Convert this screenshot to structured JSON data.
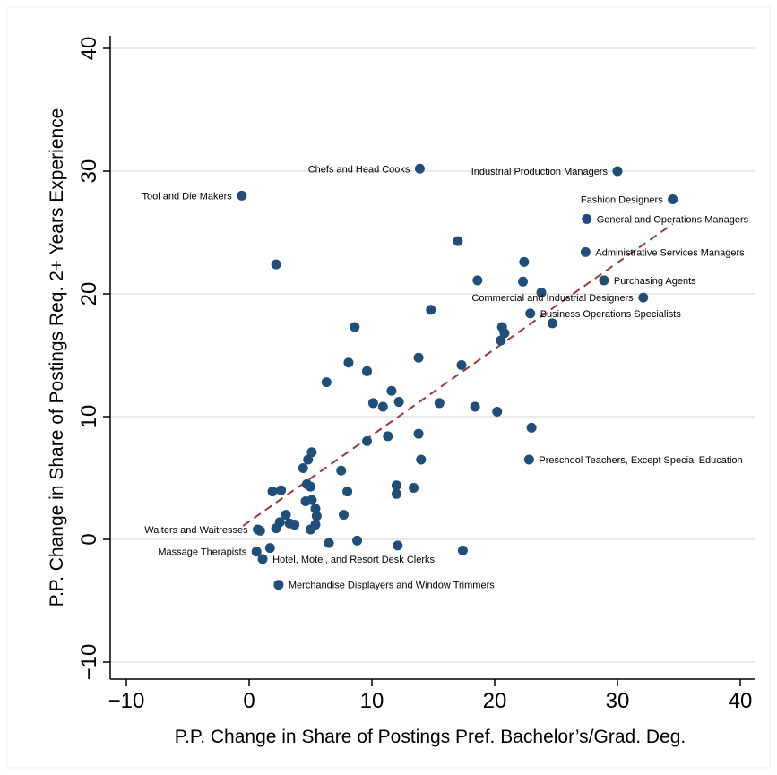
{
  "chart_data": {
    "type": "scatter",
    "xlabel": "P.P. Change in Share of Postings Pref. Bachelor’s/Grad. Deg.",
    "ylabel": "P.P. Change in Share of Postings Req. 2+ Years Experience",
    "xlim": [
      -12,
      41
    ],
    "ylim": [
      -12,
      41
    ],
    "xticks": [
      -10,
      0,
      10,
      20,
      30,
      40
    ],
    "yticks": [
      -10,
      0,
      10,
      20,
      30,
      40
    ],
    "xtick_labels": [
      "−10",
      "0",
      "10",
      "20",
      "30",
      "40"
    ],
    "ytick_labels": [
      "−10",
      "0",
      "10",
      "20",
      "30",
      "40"
    ],
    "grid": "horizontal",
    "colors": {
      "point": "#1f4e79",
      "fit_line": "#9b3a3a",
      "grid": "#dcdcdc"
    },
    "fit_line": {
      "x": [
        -0.5,
        34.5
      ],
      "y": [
        1.1,
        25.7
      ]
    },
    "labeled_points": [
      {
        "label": "Chefs and Head Cooks",
        "x": 13.9,
        "y": 30.2,
        "side": "left"
      },
      {
        "label": "Industrial Production Managers",
        "x": 30.0,
        "y": 30.0,
        "side": "left"
      },
      {
        "label": "Tool and Die Makers",
        "x": -0.6,
        "y": 28.0,
        "side": "left"
      },
      {
        "label": "Fashion Designers",
        "x": 34.5,
        "y": 27.7,
        "side": "left"
      },
      {
        "label": "General and Operations Managers",
        "x": 27.5,
        "y": 26.1,
        "side": "right"
      },
      {
        "label": "Administrative Services Managers",
        "x": 27.4,
        "y": 23.4,
        "side": "right"
      },
      {
        "label": "Purchasing Agents",
        "x": 28.9,
        "y": 21.1,
        "side": "right"
      },
      {
        "label": "Commercial and Industrial Designers",
        "x": 32.1,
        "y": 19.7,
        "side": "left"
      },
      {
        "label": "Business Operations Specialists",
        "x": 22.9,
        "y": 18.4,
        "side": "right"
      },
      {
        "label": "Preschool Teachers, Except Special Education",
        "x": 22.8,
        "y": 6.5,
        "side": "right"
      },
      {
        "label": "Waiters and Waitresses",
        "x": 0.7,
        "y": 0.8,
        "side": "left"
      },
      {
        "label": "Massage Therapists",
        "x": 0.6,
        "y": -1.0,
        "side": "left"
      },
      {
        "label": "Hotel, Motel, and Resort Desk Clerks",
        "x": 1.1,
        "y": -1.6,
        "side": "right"
      },
      {
        "label": "Merchandise Displayers and Window Trimmers",
        "x": 2.4,
        "y": -3.7,
        "side": "right"
      }
    ],
    "points": [
      {
        "x": 2.2,
        "y": 22.4
      },
      {
        "x": 17.0,
        "y": 24.3
      },
      {
        "x": 22.4,
        "y": 22.6
      },
      {
        "x": 18.6,
        "y": 21.1
      },
      {
        "x": 22.3,
        "y": 21.0
      },
      {
        "x": 23.8,
        "y": 20.1
      },
      {
        "x": 14.8,
        "y": 18.7
      },
      {
        "x": 8.6,
        "y": 17.3
      },
      {
        "x": 20.6,
        "y": 17.3
      },
      {
        "x": 20.8,
        "y": 16.8
      },
      {
        "x": 24.7,
        "y": 17.6
      },
      {
        "x": 20.5,
        "y": 16.2
      },
      {
        "x": 8.1,
        "y": 14.4
      },
      {
        "x": 13.8,
        "y": 14.8
      },
      {
        "x": 17.3,
        "y": 14.2
      },
      {
        "x": 9.6,
        "y": 13.7
      },
      {
        "x": 6.3,
        "y": 12.8
      },
      {
        "x": 11.6,
        "y": 12.1
      },
      {
        "x": 10.1,
        "y": 11.1
      },
      {
        "x": 10.9,
        "y": 10.8
      },
      {
        "x": 12.2,
        "y": 11.2
      },
      {
        "x": 15.5,
        "y": 11.1
      },
      {
        "x": 18.4,
        "y": 10.8
      },
      {
        "x": 20.2,
        "y": 10.4
      },
      {
        "x": 23.0,
        "y": 9.1
      },
      {
        "x": 11.3,
        "y": 8.4
      },
      {
        "x": 13.8,
        "y": 8.6
      },
      {
        "x": 9.6,
        "y": 8.0
      },
      {
        "x": 5.1,
        "y": 7.1
      },
      {
        "x": 4.8,
        "y": 6.5
      },
      {
        "x": 14.0,
        "y": 6.5
      },
      {
        "x": 4.4,
        "y": 5.8
      },
      {
        "x": 7.5,
        "y": 5.6
      },
      {
        "x": 4.7,
        "y": 4.5
      },
      {
        "x": 5.0,
        "y": 4.3
      },
      {
        "x": 12.0,
        "y": 4.4
      },
      {
        "x": 13.4,
        "y": 4.2
      },
      {
        "x": 2.6,
        "y": 4.0
      },
      {
        "x": 1.9,
        "y": 3.9
      },
      {
        "x": 8.0,
        "y": 3.9
      },
      {
        "x": 12.0,
        "y": 3.7
      },
      {
        "x": 4.6,
        "y": 3.1
      },
      {
        "x": 5.1,
        "y": 3.2
      },
      {
        "x": 5.4,
        "y": 2.5
      },
      {
        "x": 3.0,
        "y": 2.0
      },
      {
        "x": 5.5,
        "y": 1.9
      },
      {
        "x": 7.7,
        "y": 2.0
      },
      {
        "x": 2.5,
        "y": 1.4
      },
      {
        "x": 3.3,
        "y": 1.3
      },
      {
        "x": 3.7,
        "y": 1.2
      },
      {
        "x": 5.4,
        "y": 1.2
      },
      {
        "x": 2.2,
        "y": 0.9
      },
      {
        "x": 5.0,
        "y": 0.8
      },
      {
        "x": 0.9,
        "y": 0.7
      },
      {
        "x": 1.7,
        "y": -0.7
      },
      {
        "x": 6.5,
        "y": -0.3
      },
      {
        "x": 8.8,
        "y": -0.1
      },
      {
        "x": 12.1,
        "y": -0.5
      },
      {
        "x": 17.4,
        "y": -0.9
      }
    ]
  }
}
